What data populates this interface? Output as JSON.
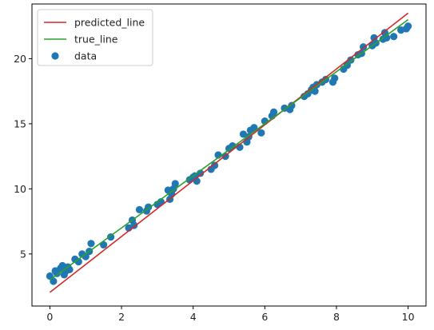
{
  "chart_data": {
    "type": "scatter",
    "xlim": [
      -0.5,
      10.5
    ],
    "ylim": [
      1.0,
      24.2
    ],
    "x_ticks": [
      0,
      2,
      4,
      6,
      8,
      10
    ],
    "y_ticks": [
      5,
      10,
      15,
      20
    ],
    "grid": false,
    "legend_position": "top-left",
    "lines": [
      {
        "name": "predicted_line",
        "color": "#d62728",
        "x": [
          0,
          10
        ],
        "y": [
          2.05,
          23.5
        ]
      },
      {
        "name": "true_line",
        "color": "#2ca02c",
        "x": [
          0,
          10
        ],
        "y": [
          3.0,
          23.0
        ]
      }
    ],
    "scatter": {
      "name": "data",
      "color": "#1f77b4",
      "x": [
        0.0,
        0.1,
        0.15,
        0.2,
        0.3,
        0.35,
        0.4,
        0.45,
        0.5,
        0.55,
        0.7,
        0.8,
        0.9,
        1.0,
        1.1,
        1.15,
        1.5,
        1.7,
        2.2,
        2.3,
        2.35,
        2.5,
        2.7,
        2.75,
        3.0,
        3.1,
        3.3,
        3.35,
        3.4,
        3.45,
        3.5,
        3.9,
        4.0,
        4.05,
        4.1,
        4.2,
        4.5,
        4.6,
        4.7,
        4.9,
        5.0,
        5.1,
        5.3,
        5.4,
        5.5,
        5.55,
        5.6,
        5.7,
        5.9,
        6.0,
        6.2,
        6.25,
        6.55,
        6.7,
        6.75,
        7.1,
        7.2,
        7.3,
        7.35,
        7.4,
        7.45,
        7.6,
        7.7,
        7.9,
        7.95,
        8.2,
        8.3,
        8.4,
        8.6,
        8.7,
        8.75,
        9.0,
        9.05,
        9.1,
        9.3,
        9.35,
        9.4,
        9.6,
        9.8,
        9.95,
        10.0
      ],
      "y": [
        3.3,
        2.9,
        3.7,
        3.5,
        3.9,
        4.1,
        3.4,
        3.7,
        4.0,
        3.8,
        4.6,
        4.4,
        5.0,
        4.8,
        5.2,
        5.8,
        5.7,
        6.3,
        7.0,
        7.6,
        7.2,
        8.4,
        8.3,
        8.6,
        8.8,
        9.0,
        9.9,
        9.2,
        9.6,
        10.0,
        10.4,
        10.7,
        10.9,
        11.0,
        10.6,
        11.2,
        11.5,
        11.8,
        12.6,
        12.5,
        13.1,
        13.3,
        13.2,
        14.2,
        13.6,
        14.0,
        14.5,
        14.7,
        14.3,
        15.2,
        15.6,
        15.9,
        16.2,
        16.1,
        16.4,
        17.1,
        17.3,
        17.6,
        17.8,
        17.5,
        18.0,
        18.2,
        18.4,
        18.2,
        18.5,
        19.2,
        19.5,
        19.9,
        20.3,
        20.4,
        20.9,
        21.0,
        21.6,
        21.2,
        21.5,
        22.0,
        21.6,
        21.7,
        22.2,
        22.3,
        22.5
      ]
    }
  }
}
